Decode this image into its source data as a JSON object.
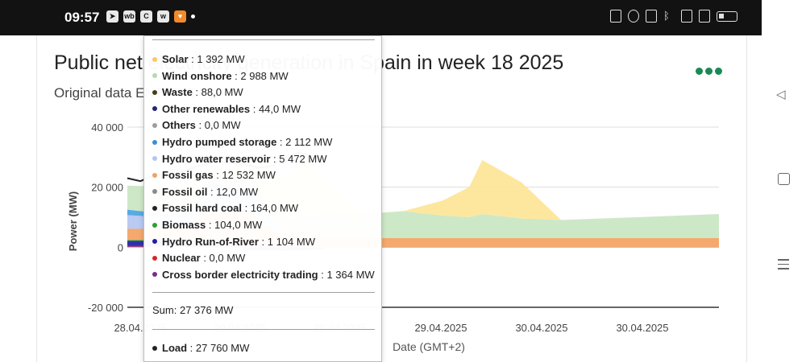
{
  "status_bar": {
    "time": "09:57",
    "app_icons": [
      "telegram-icon",
      "wb-icon",
      "c-icon",
      "wf-icon",
      "heart-icon"
    ],
    "right_icons": [
      "nfc-icon",
      "alarm-icon",
      "vibrate-icon",
      "bluetooth-icon",
      "data-icon",
      "signal-icon",
      "battery-icon"
    ]
  },
  "header": {
    "title": "Public net electricity generation in Spain in week 18 2025",
    "subtitle": "Original data ENTSO-E",
    "menu_icon": "more-dots-icon",
    "menu_color": "#1a8a55"
  },
  "chart_data": {
    "type": "area",
    "title": "Public net electricity generation in Spain in week 18 2025",
    "ylabel": "Power (MW)",
    "xlabel": "Date (GMT+2)",
    "ylim": [
      -20000,
      40000
    ],
    "yticks": [
      "40 000",
      "20 000",
      "0",
      "-20 000"
    ],
    "xticks": [
      "28.04.2025",
      "29.04.2025",
      "29.04.2025",
      "29.04.2025",
      "30.04.2025",
      "30.04.2025"
    ],
    "grid": true,
    "x_hours": [
      0,
      6,
      10,
      12,
      12.5,
      13,
      14,
      15,
      18,
      24,
      27,
      30,
      36,
      42,
      48,
      52,
      54,
      60,
      66,
      72,
      78,
      84,
      90
    ],
    "series": [
      {
        "name": "Nuclear",
        "color": "#d62728",
        "values": [
          500,
          500,
          500,
          500,
          0,
          0,
          0,
          0,
          0,
          0,
          0,
          0,
          0,
          0,
          0,
          0,
          0,
          0,
          0,
          0,
          0,
          0,
          0
        ]
      },
      {
        "name": "Hydro Run-of-River",
        "color": "#1f1fa8",
        "values": [
          1600,
          1600,
          1400,
          1300,
          1000,
          700,
          400,
          200,
          100,
          0,
          0,
          0,
          0,
          0,
          0,
          0,
          0,
          0,
          0,
          0,
          0,
          0,
          0
        ]
      },
      {
        "name": "Biomass",
        "color": "#2ca02c",
        "values": [
          300,
          300,
          300,
          300,
          200,
          150,
          100,
          100,
          100,
          50,
          50,
          50,
          50,
          50,
          50,
          50,
          50,
          50,
          50,
          50,
          50,
          50,
          50
        ]
      },
      {
        "name": "Fossil hard coal",
        "color": "#222222",
        "values": [
          0,
          0,
          0,
          0,
          0,
          0,
          0,
          0,
          0,
          0,
          0,
          0,
          0,
          0,
          0,
          0,
          0,
          0,
          0,
          0,
          0,
          0,
          0
        ]
      },
      {
        "name": "Fossil oil",
        "color": "#8c6d3f",
        "values": [
          0,
          0,
          0,
          0,
          0,
          0,
          0,
          0,
          0,
          0,
          0,
          0,
          0,
          0,
          0,
          0,
          0,
          0,
          0,
          0,
          0,
          0,
          0
        ]
      },
      {
        "name": "Fossil gas",
        "color": "#f4a261",
        "values": [
          3800,
          3500,
          4500,
          12000,
          13000,
          13000,
          13000,
          12500,
          12500,
          3000,
          3000,
          3000,
          3000,
          3000,
          3000,
          3000,
          3000,
          3000,
          3000,
          3000,
          3000,
          3000,
          3000
        ]
      },
      {
        "name": "Hydro water reservoir",
        "color": "#b3c6f2",
        "values": [
          4500,
          4000,
          3500,
          5500,
          5500,
          5500,
          5500,
          5500,
          5000,
          0,
          0,
          0,
          0,
          0,
          0,
          0,
          0,
          0,
          0,
          0,
          0,
          0,
          0
        ]
      },
      {
        "name": "Hydro pumped storage",
        "color": "#4aa3df",
        "values": [
          1800,
          1200,
          2000,
          2200,
          2100,
          2000,
          2000,
          2000,
          1500,
          0,
          0,
          0,
          0,
          0,
          0,
          0,
          0,
          0,
          0,
          0,
          0,
          0,
          0
        ]
      },
      {
        "name": "Others",
        "color": "#9e9e9e",
        "values": [
          0,
          0,
          0,
          0,
          0,
          0,
          0,
          0,
          0,
          0,
          0,
          0,
          0,
          0,
          0,
          0,
          0,
          0,
          0,
          0,
          0,
          0,
          0
        ]
      },
      {
        "name": "Other renewables",
        "color": "#3a3a8c",
        "values": [
          0,
          0,
          0,
          0,
          0,
          0,
          0,
          0,
          0,
          0,
          0,
          0,
          0,
          0,
          0,
          0,
          0,
          0,
          0,
          0,
          0,
          0,
          0
        ]
      },
      {
        "name": "Waste",
        "color": "#5a3d1e",
        "values": [
          0,
          0,
          0,
          0,
          0,
          0,
          0,
          0,
          0,
          0,
          0,
          0,
          0,
          0,
          0,
          0,
          0,
          0,
          0,
          0,
          0,
          0,
          0
        ]
      },
      {
        "name": "Wind onshore",
        "color": "#c9e6c2",
        "values": [
          8000,
          9000,
          5000,
          2500,
          3000,
          3000,
          3000,
          3000,
          3500,
          6500,
          7000,
          8500,
          8000,
          9000,
          7500,
          7000,
          8000,
          6500,
          6000,
          6500,
          7000,
          7500,
          8000
        ]
      },
      {
        "name": "Solar",
        "color": "#fde597",
        "values": [
          0,
          0,
          5000,
          2000,
          2000,
          2000,
          2000,
          2000,
          6000,
          13500,
          19000,
          12000,
          0,
          0,
          5000,
          10000,
          18000,
          12000,
          0,
          0,
          0,
          0,
          0
        ]
      }
    ],
    "load": {
      "name": "Load",
      "color": "#222222",
      "x_hours": [
        0,
        2,
        4,
        6,
        8,
        10,
        12,
        14,
        16,
        18,
        20,
        22,
        24,
        26,
        28,
        30
      ],
      "values": [
        23000,
        22000,
        24000,
        24500,
        25000,
        26500,
        27760,
        28500,
        28000,
        27500,
        26500,
        27000,
        30000,
        31500,
        30500,
        28500
      ]
    },
    "crossborder": {
      "name": "Cross border electricity trading",
      "color": "#7b2d8e",
      "x_hours": [
        0,
        4,
        8,
        12,
        14,
        16,
        18,
        24,
        28,
        30
      ],
      "values": [
        500,
        800,
        900,
        1364,
        1200,
        900,
        -1000,
        -1200,
        -900,
        -600
      ]
    },
    "tooltip": {
      "entries": [
        {
          "name": "Solar",
          "value": "1 392 MW",
          "color": "#fcc862"
        },
        {
          "name": "Wind onshore",
          "value": "2 988 MW",
          "color": "#b5d9b0"
        },
        {
          "name": "Waste",
          "value": "88,0 MW",
          "color": "#4a3a1e"
        },
        {
          "name": "Other renewables",
          "value": "44,0 MW",
          "color": "#24247a"
        },
        {
          "name": "Others",
          "value": "0,0 MW",
          "color": "#9e9e9e"
        },
        {
          "name": "Hydro pumped storage",
          "value": "2 112 MW",
          "color": "#3b8fd6"
        },
        {
          "name": "Hydro water reservoir",
          "value": "5 472 MW",
          "color": "#b3c6f2"
        },
        {
          "name": "Fossil gas",
          "value": "12 532 MW",
          "color": "#f4a261"
        },
        {
          "name": "Fossil oil",
          "value": "12,0 MW",
          "color": "#8a8a8a"
        },
        {
          "name": "Fossil hard coal",
          "value": "164,0 MW",
          "color": "#222222"
        },
        {
          "name": "Biomass",
          "value": "104,0 MW",
          "color": "#2ca02c"
        },
        {
          "name": "Hydro Run-of-River",
          "value": "1 104 MW",
          "color": "#1f1fa8"
        },
        {
          "name": "Nuclear",
          "value": "0,0 MW",
          "color": "#d62728"
        },
        {
          "name": "Cross border electricity trading",
          "value": "1 364 MW",
          "color": "#7b2d8e"
        }
      ],
      "sum_label": "Sum",
      "sum_value": "27 376 MW",
      "load_label": "Load",
      "load_value": "27 760 MW"
    }
  }
}
